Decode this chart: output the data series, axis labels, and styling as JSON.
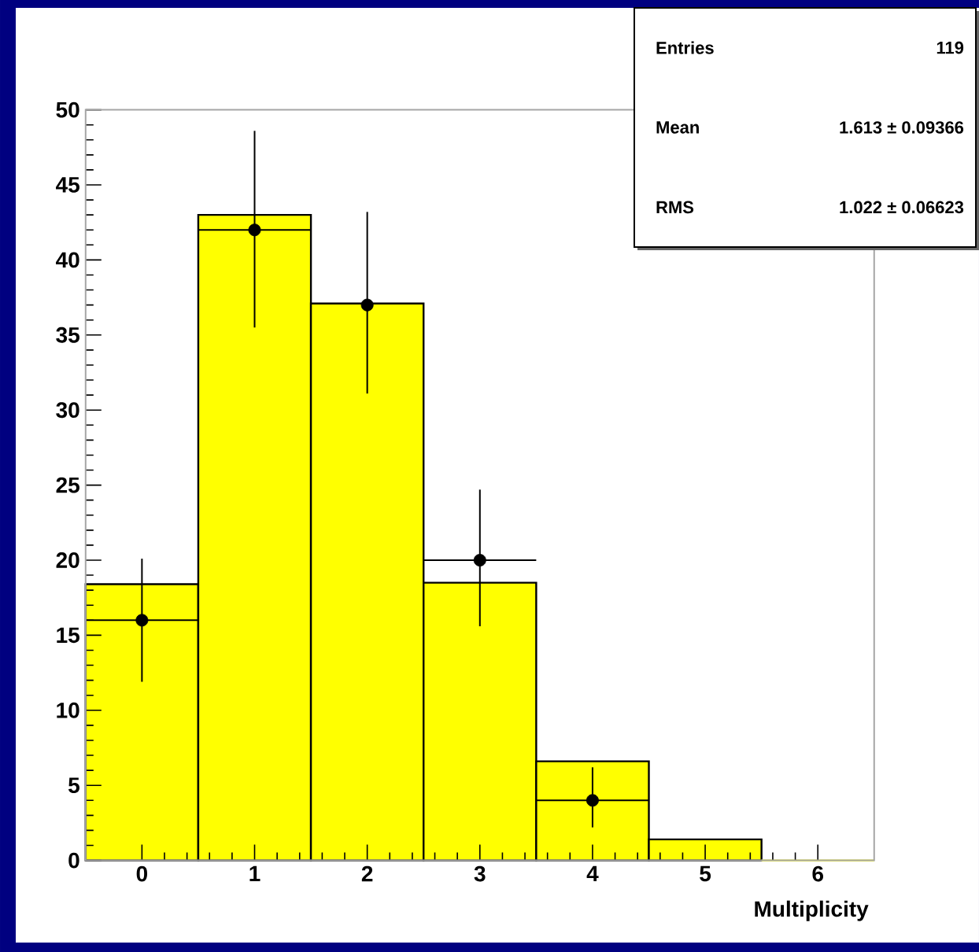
{
  "chart_data": {
    "type": "histogram",
    "xlabel": "Multiplicity",
    "xlim": [
      -0.5,
      6.5
    ],
    "ylim": [
      0,
      50
    ],
    "xticks": [
      0,
      1,
      2,
      3,
      4,
      5,
      6
    ],
    "yticks": [
      0,
      5,
      10,
      15,
      20,
      25,
      30,
      35,
      40,
      45,
      50
    ],
    "marker": "circle",
    "annotations": [
      "Entries",
      "119",
      "Mean",
      "1.613 ± 0.09366",
      "RMS",
      "1.022 ± 0.06623"
    ],
    "series": [
      {
        "type": "histogram",
        "color": "#ffff00",
        "bins": [
          -0.5,
          0.5,
          1.5,
          2.5,
          3.5,
          4.5,
          5.5,
          6.5
        ],
        "values": [
          18.4,
          43,
          37.1,
          18.5,
          6.6,
          1.4,
          0
        ]
      },
      {
        "type": "scatter",
        "color": "#000000",
        "x": [
          0,
          1,
          2,
          3,
          4
        ],
        "values": [
          16,
          42,
          37,
          20,
          4
        ],
        "errors": [
          [
            11.9,
            20.1
          ],
          [
            35.5,
            48.6
          ],
          [
            31.1,
            43.2
          ],
          [
            15.6,
            24.7
          ],
          [
            2.2,
            6.2
          ]
        ],
        "xerrors": [
          0.5,
          0.5,
          null,
          0.5,
          0.5
        ]
      }
    ]
  }
}
